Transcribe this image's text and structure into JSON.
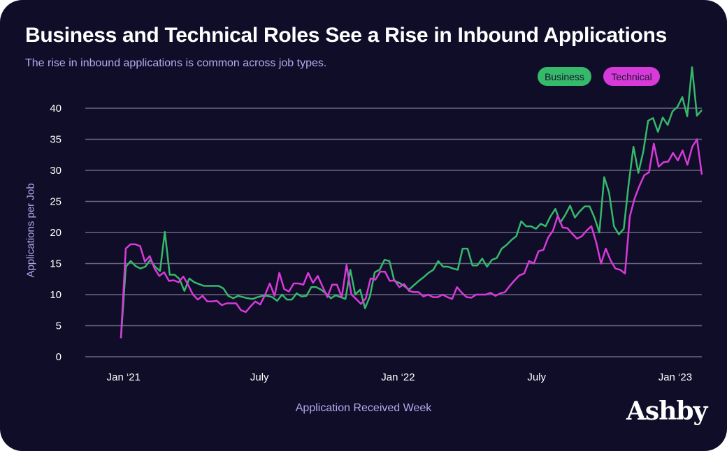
{
  "header": {
    "title": "Business and Technical Roles See a Rise in Inbound Applications",
    "subtitle": "The rise in inbound applications is common across job types."
  },
  "brand": {
    "logo_text": "Ashby"
  },
  "colors": {
    "background": "#100d28",
    "business": "#35b96a",
    "technical": "#d83ad9",
    "grid": "#6a6780",
    "muted_text": "#b6a9ee"
  },
  "chart_data": {
    "type": "line",
    "title": "Business and Technical Roles See a Rise in Inbound Applications",
    "subtitle": "The rise in inbound applications is common across job types.",
    "xlabel": "Application Received Week",
    "ylabel": "Applications per Job",
    "ylim": [
      0,
      40
    ],
    "yticks": [
      0,
      5,
      10,
      15,
      20,
      25,
      30,
      35,
      40
    ],
    "xticks": [
      {
        "label": "Jan ‘21",
        "week": 0.5
      },
      {
        "label": "July",
        "week": 26
      },
      {
        "label": "Jan ‘22",
        "week": 52
      },
      {
        "label": "July",
        "week": 78
      },
      {
        "label": "Jan ‘23",
        "week": 104
      }
    ],
    "x_range_weeks": [
      0,
      109
    ],
    "grid": true,
    "legend_position": "top-right",
    "series": [
      {
        "name": "Business",
        "color": "#35b96a",
        "values": [
          3.0,
          14.5,
          15.4,
          14.6,
          14.2,
          14.5,
          15.6,
          14.5,
          13.8,
          20.1,
          13.2,
          13.2,
          12.5,
          10.6,
          12.6,
          12.0,
          11.7,
          11.4,
          11.4,
          11.4,
          11.4,
          11.0,
          9.8,
          9.4,
          9.8,
          9.6,
          9.4,
          9.3,
          9.6,
          9.8,
          9.8,
          9.6,
          9.0,
          10.0,
          9.2,
          9.2,
          10.2,
          9.7,
          9.8,
          11.2,
          11.2,
          10.8,
          10.2,
          9.4,
          9.9,
          9.6,
          9.3,
          14.0,
          10.0,
          10.8,
          7.8,
          9.7,
          13.6,
          14.0,
          15.6,
          15.4,
          12.2,
          11.9,
          11.4,
          10.8,
          11.5,
          12.2,
          12.8,
          13.5,
          14.0,
          15.4,
          14.5,
          14.5,
          14.2,
          14.0,
          17.4,
          17.4,
          14.7,
          14.7,
          15.8,
          14.5,
          15.6,
          15.9,
          17.4,
          18.0,
          18.8,
          19.4,
          21.8,
          21.0,
          21.0,
          20.6,
          21.4,
          21.0,
          22.6,
          23.8,
          21.6,
          22.8,
          24.3,
          22.4,
          23.4,
          24.2,
          24.2,
          22.4,
          20.0,
          28.9,
          26.4,
          21.0,
          19.7,
          20.6,
          27.8,
          33.8,
          29.6,
          33.0,
          38.0,
          38.4,
          36.2,
          38.5,
          37.3,
          39.5,
          40.2,
          41.8,
          38.7,
          46.6,
          38.8,
          39.7
        ]
      },
      {
        "name": "Technical",
        "color": "#d83ad9",
        "values": [
          3.0,
          17.4,
          18.1,
          18.1,
          17.8,
          15.3,
          16.2,
          14.2,
          13.0,
          13.6,
          12.2,
          12.3,
          12.0,
          12.9,
          11.6,
          10.0,
          9.2,
          9.8,
          8.9,
          8.9,
          9.0,
          8.3,
          8.6,
          8.6,
          8.6,
          7.5,
          7.2,
          8.1,
          8.9,
          8.4,
          9.9,
          11.8,
          9.8,
          13.5,
          10.9,
          10.5,
          11.8,
          11.8,
          11.6,
          13.5,
          11.9,
          13.0,
          11.3,
          9.6,
          11.6,
          11.6,
          9.6,
          14.8,
          10.0,
          9.3,
          8.5,
          9.4,
          12.6,
          12.4,
          13.7,
          13.7,
          12.2,
          12.3,
          11.2,
          11.7,
          10.6,
          10.4,
          10.4,
          9.7,
          10.0,
          9.6,
          9.6,
          10.0,
          9.6,
          9.3,
          11.2,
          10.3,
          9.6,
          9.5,
          10.0,
          10.0,
          10.0,
          10.3,
          9.8,
          10.2,
          10.4,
          11.4,
          12.3,
          13.1,
          13.4,
          15.4,
          15.0,
          17.0,
          17.2,
          19.2,
          20.3,
          22.7,
          20.8,
          20.7,
          19.8,
          19.0,
          19.4,
          20.3,
          21.0,
          18.4,
          15.0,
          17.4,
          15.5,
          14.2,
          14.0,
          13.4,
          22.6,
          25.5,
          27.5,
          29.2,
          29.7,
          34.3,
          30.6,
          31.3,
          31.4,
          32.8,
          31.6,
          33.2,
          30.9,
          33.8,
          35.0,
          29.3
        ]
      }
    ]
  },
  "legend": {
    "items": [
      {
        "label": "Business"
      },
      {
        "label": "Technical"
      }
    ]
  }
}
